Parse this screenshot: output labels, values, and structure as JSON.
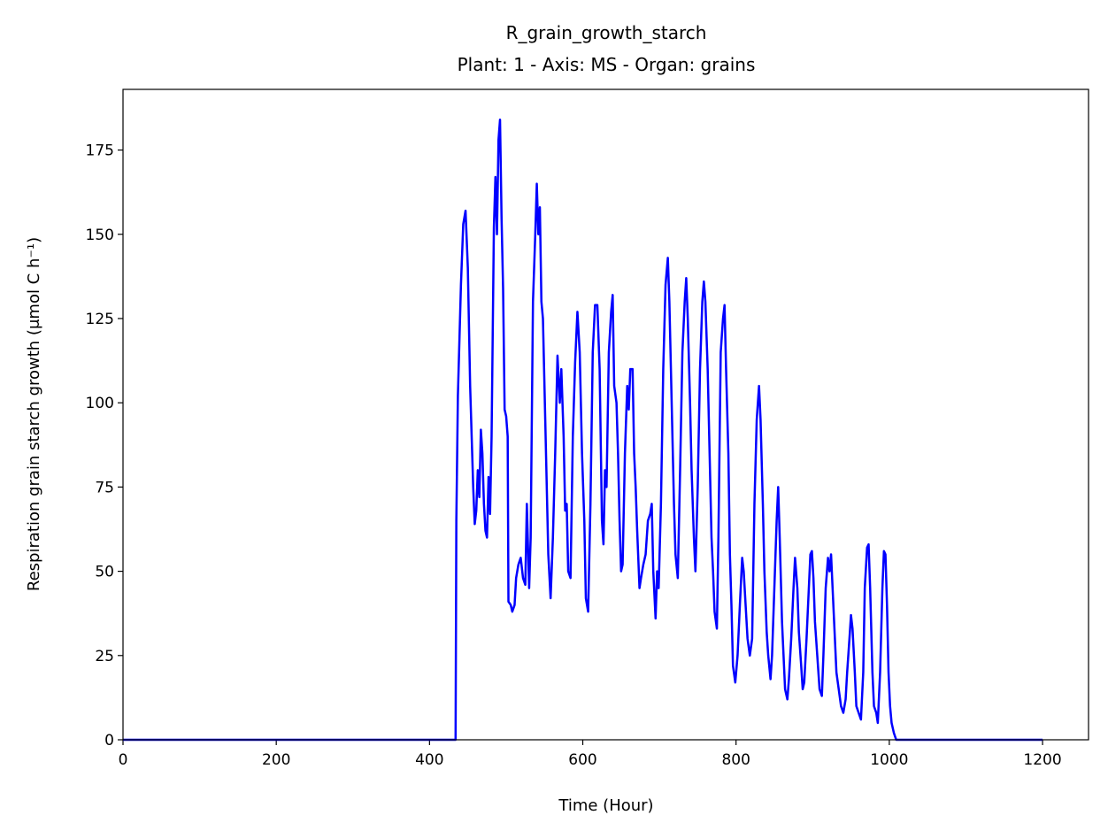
{
  "chart_data": {
    "type": "line",
    "title": "R_grain_growth_starch",
    "subtitle": "Plant: 1 - Axis: MS - Organ: grains",
    "x_label": "Time (Hour)",
    "y_label": "Respiration grain starch growth (μmol C h⁻¹)",
    "xlim": [
      0,
      1260
    ],
    "ylim": [
      0,
      193
    ],
    "xticks": [
      0,
      200,
      400,
      600,
      800,
      1000,
      1200
    ],
    "yticks": [
      0,
      25,
      50,
      75,
      100,
      125,
      150,
      175
    ],
    "grid": false,
    "series": [
      {
        "color": "#0000ff",
        "x": [
          0,
          434,
          435,
          437,
          441,
          444,
          447,
          450,
          453,
          455,
          457,
          459,
          461,
          463,
          465,
          467,
          469,
          471,
          473,
          475,
          477,
          479,
          481,
          484,
          486,
          488,
          490,
          492,
          494,
          496,
          498,
          500,
          502,
          503,
          506,
          508,
          511,
          513,
          516,
          519,
          522,
          525,
          527,
          530,
          532,
          535,
          538,
          540,
          542,
          544,
          546,
          548,
          551,
          555,
          558,
          561,
          564,
          567,
          570,
          572,
          575,
          577,
          579,
          581,
          584,
          587,
          590,
          593,
          596,
          599,
          602,
          604,
          607,
          610,
          613,
          616,
          619,
          622,
          625,
          627,
          629,
          631,
          634,
          637,
          639,
          641,
          644,
          646,
          648,
          650,
          652,
          655,
          658,
          660,
          662,
          665,
          667,
          669,
          671,
          674,
          676,
          679,
          682,
          685,
          688,
          690,
          692,
          695,
          697,
          699,
          702,
          705,
          708,
          711,
          713,
          716,
          719,
          721,
          724,
          727,
          730,
          733,
          735,
          737,
          740,
          742,
          745,
          747,
          750,
          753,
          756,
          758,
          760,
          763,
          765,
          768,
          770,
          772,
          775,
          777,
          780,
          783,
          785,
          787,
          790,
          792,
          794,
          796,
          799,
          802,
          805,
          808,
          810,
          813,
          815,
          818,
          821,
          824,
          827,
          830,
          832,
          835,
          837,
          840,
          842,
          845,
          847,
          850,
          853,
          855,
          857,
          860,
          862,
          864,
          867,
          869,
          872,
          875,
          877,
          880,
          882,
          885,
          887,
          889,
          892,
          895,
          897,
          899,
          901,
          903,
          906,
          909,
          912,
          914,
          917,
          920,
          922,
          924,
          926,
          929,
          931,
          934,
          937,
          940,
          943,
          945,
          948,
          950,
          952,
          955,
          957,
          960,
          963,
          966,
          968,
          971,
          973,
          975,
          978,
          980,
          983,
          985,
          988,
          991,
          993,
          995,
          997,
          999,
          1001,
          1003,
          1006,
          1009,
          1200
        ],
        "values": [
          0,
          0,
          65,
          102,
          135,
          153,
          157,
          140,
          105,
          90,
          75,
          64,
          68,
          80,
          72,
          92,
          85,
          70,
          62,
          60,
          78,
          67,
          90,
          152,
          167,
          150,
          178,
          184,
          155,
          134,
          98,
          96,
          90,
          41,
          40,
          38,
          40,
          48,
          52,
          54,
          48,
          46,
          70,
          45,
          60,
          130,
          150,
          165,
          150,
          158,
          130,
          125,
          95,
          55,
          42,
          60,
          85,
          114,
          100,
          110,
          90,
          68,
          70,
          50,
          48,
          90,
          112,
          127,
          115,
          85,
          65,
          42,
          38,
          70,
          115,
          129,
          129,
          110,
          65,
          58,
          80,
          75,
          115,
          127,
          132,
          105,
          100,
          85,
          65,
          50,
          52,
          85,
          105,
          98,
          110,
          110,
          85,
          75,
          62,
          45,
          48,
          52,
          55,
          65,
          67,
          70,
          50,
          36,
          50,
          45,
          70,
          110,
          135,
          143,
          130,
          100,
          70,
          55,
          48,
          80,
          115,
          130,
          137,
          125,
          100,
          80,
          60,
          50,
          75,
          110,
          130,
          136,
          130,
          110,
          90,
          60,
          50,
          38,
          33,
          60,
          115,
          125,
          129,
          110,
          85,
          55,
          40,
          22,
          17,
          25,
          40,
          54,
          50,
          38,
          30,
          25,
          30,
          70,
          95,
          105,
          95,
          70,
          50,
          32,
          25,
          18,
          25,
          45,
          65,
          75,
          60,
          35,
          25,
          15,
          12,
          18,
          30,
          45,
          54,
          45,
          32,
          22,
          15,
          17,
          30,
          45,
          55,
          56,
          48,
          35,
          25,
          15,
          13,
          25,
          45,
          54,
          50,
          55,
          45,
          30,
          20,
          15,
          10,
          8,
          12,
          20,
          30,
          37,
          33,
          20,
          10,
          8,
          6,
          20,
          45,
          57,
          58,
          45,
          20,
          10,
          8,
          5,
          20,
          45,
          56,
          55,
          40,
          20,
          10,
          5,
          2,
          0,
          0
        ]
      }
    ]
  }
}
